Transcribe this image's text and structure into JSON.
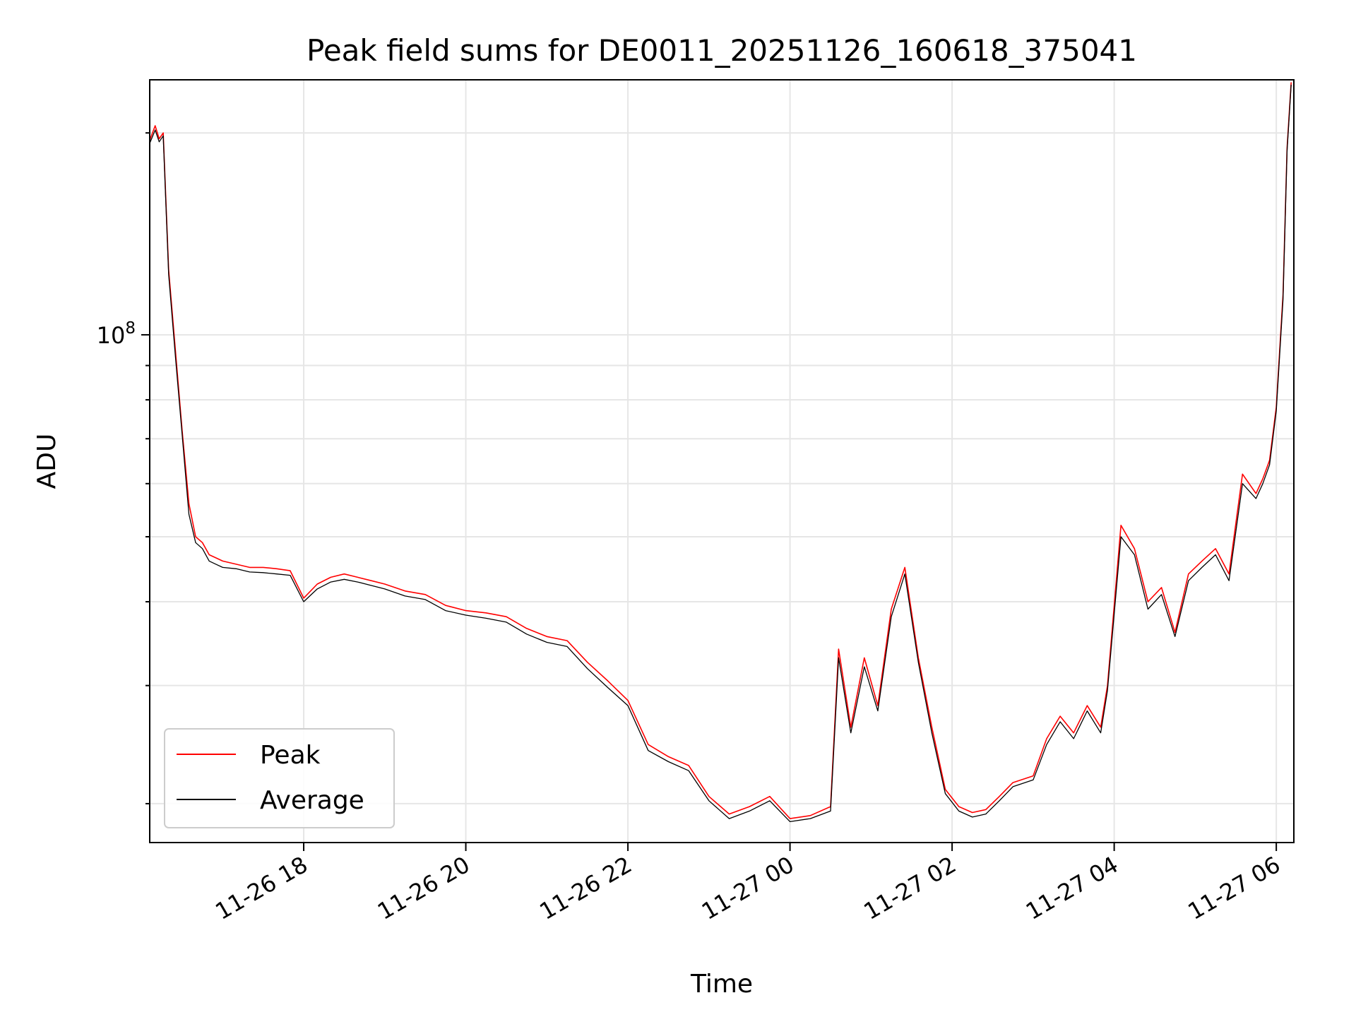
{
  "chart_data": {
    "type": "line",
    "title": "Peak field sums for DE0011_20251126_160618_375041",
    "xlabel": "Time",
    "ylabel": "ADU",
    "y_scale": "log",
    "ylim": [
      17500000,
      240000000
    ],
    "xlim": [
      "2025-11-26T16:06",
      "2025-11-27T06:13"
    ],
    "grid": true,
    "legend_position": "lower-left",
    "x_tick_labels": [
      {
        "t": "2025-11-26T18:00",
        "label": "11-26 18"
      },
      {
        "t": "2025-11-26T20:00",
        "label": "11-26 20"
      },
      {
        "t": "2025-11-26T22:00",
        "label": "11-26 22"
      },
      {
        "t": "2025-11-27T00:00",
        "label": "11-27 00"
      },
      {
        "t": "2025-11-27T02:00",
        "label": "11-27 02"
      },
      {
        "t": "2025-11-27T04:00",
        "label": "11-27 04"
      },
      {
        "t": "2025-11-27T06:00",
        "label": "11-27 06"
      }
    ],
    "y_tick_labels": [
      {
        "value": 100000000,
        "base": "10",
        "exp": "8"
      }
    ],
    "y_minor_ticks": [
      20000000,
      30000000,
      40000000,
      50000000,
      60000000,
      70000000,
      80000000,
      90000000,
      200000000
    ],
    "series": [
      {
        "name": "Peak",
        "color": "#ff0000",
        "x": [
          "2025-11-26T16:06",
          "2025-11-26T16:10",
          "2025-11-26T16:13",
          "2025-11-26T16:16",
          "2025-11-26T16:20",
          "2025-11-26T16:25",
          "2025-11-26T16:30",
          "2025-11-26T16:35",
          "2025-11-26T16:40",
          "2025-11-26T16:45",
          "2025-11-26T16:50",
          "2025-11-26T16:55",
          "2025-11-26T17:00",
          "2025-11-26T17:10",
          "2025-11-26T17:20",
          "2025-11-26T17:30",
          "2025-11-26T17:40",
          "2025-11-26T17:50",
          "2025-11-26T18:00",
          "2025-11-26T18:10",
          "2025-11-26T18:20",
          "2025-11-26T18:30",
          "2025-11-26T18:40",
          "2025-11-26T18:50",
          "2025-11-26T19:00",
          "2025-11-26T19:15",
          "2025-11-26T19:30",
          "2025-11-26T19:45",
          "2025-11-26T20:00",
          "2025-11-26T20:15",
          "2025-11-26T20:30",
          "2025-11-26T20:45",
          "2025-11-26T21:00",
          "2025-11-26T21:15",
          "2025-11-26T21:30",
          "2025-11-26T21:45",
          "2025-11-26T22:00",
          "2025-11-26T22:15",
          "2025-11-26T22:30",
          "2025-11-26T22:45",
          "2025-11-26T23:00",
          "2025-11-26T23:15",
          "2025-11-26T23:30",
          "2025-11-26T23:45",
          "2025-11-27T00:00",
          "2025-11-27T00:15",
          "2025-11-27T00:30",
          "2025-11-27T00:36",
          "2025-11-27T00:45",
          "2025-11-27T00:55",
          "2025-11-27T01:05",
          "2025-11-27T01:15",
          "2025-11-27T01:25",
          "2025-11-27T01:35",
          "2025-11-27T01:45",
          "2025-11-27T01:55",
          "2025-11-27T02:05",
          "2025-11-27T02:15",
          "2025-11-27T02:25",
          "2025-11-27T02:35",
          "2025-11-27T02:45",
          "2025-11-27T03:00",
          "2025-11-27T03:10",
          "2025-11-27T03:20",
          "2025-11-27T03:30",
          "2025-11-27T03:40",
          "2025-11-27T03:50",
          "2025-11-27T03:55",
          "2025-11-27T04:05",
          "2025-11-27T04:15",
          "2025-11-27T04:25",
          "2025-11-27T04:35",
          "2025-11-27T04:45",
          "2025-11-27T04:55",
          "2025-11-27T05:05",
          "2025-11-27T05:15",
          "2025-11-27T05:25",
          "2025-11-27T05:35",
          "2025-11-27T05:45",
          "2025-11-27T05:50",
          "2025-11-27T05:55",
          "2025-11-27T06:00",
          "2025-11-27T06:05",
          "2025-11-27T06:08",
          "2025-11-27T06:11"
        ],
        "values": [
          195000000,
          205000000,
          196000000,
          200000000,
          125000000,
          95000000,
          72000000,
          56000000,
          50000000,
          49000000,
          47000000,
          46500000,
          46000000,
          45500000,
          45000000,
          45000000,
          44800000,
          44500000,
          40500000,
          42500000,
          43500000,
          44000000,
          43500000,
          43000000,
          42500000,
          41500000,
          41000000,
          39500000,
          38800000,
          38500000,
          38000000,
          36500000,
          35500000,
          35000000,
          32500000,
          30500000,
          28500000,
          24500000,
          23500000,
          22800000,
          20500000,
          19300000,
          19800000,
          20500000,
          19000000,
          19200000,
          19800000,
          34000000,
          26000000,
          33000000,
          28000000,
          39000000,
          45000000,
          33000000,
          26000000,
          21000000,
          19800000,
          19400000,
          19600000,
          20500000,
          21500000,
          22000000,
          25000000,
          27000000,
          25500000,
          28000000,
          26000000,
          30000000,
          52000000,
          48000000,
          40000000,
          42000000,
          36000000,
          44000000,
          46000000,
          48000000,
          44000000,
          62000000,
          58000000,
          61000000,
          65000000,
          78000000,
          115000000,
          190000000,
          238000000
        ]
      },
      {
        "name": "Average",
        "color": "#000000",
        "x": [
          "2025-11-26T16:06",
          "2025-11-26T16:10",
          "2025-11-26T16:13",
          "2025-11-26T16:16",
          "2025-11-26T16:20",
          "2025-11-26T16:25",
          "2025-11-26T16:30",
          "2025-11-26T16:35",
          "2025-11-26T16:40",
          "2025-11-26T16:45",
          "2025-11-26T16:50",
          "2025-11-26T16:55",
          "2025-11-26T17:00",
          "2025-11-26T17:10",
          "2025-11-26T17:20",
          "2025-11-26T17:30",
          "2025-11-26T17:40",
          "2025-11-26T17:50",
          "2025-11-26T18:00",
          "2025-11-26T18:10",
          "2025-11-26T18:20",
          "2025-11-26T18:30",
          "2025-11-26T18:40",
          "2025-11-26T18:50",
          "2025-11-26T19:00",
          "2025-11-26T19:15",
          "2025-11-26T19:30",
          "2025-11-26T19:45",
          "2025-11-26T20:00",
          "2025-11-26T20:15",
          "2025-11-26T20:30",
          "2025-11-26T20:45",
          "2025-11-26T21:00",
          "2025-11-26T21:15",
          "2025-11-26T21:30",
          "2025-11-26T21:45",
          "2025-11-26T22:00",
          "2025-11-26T22:15",
          "2025-11-26T22:30",
          "2025-11-26T22:45",
          "2025-11-26T23:00",
          "2025-11-26T23:15",
          "2025-11-26T23:30",
          "2025-11-26T23:45",
          "2025-11-27T00:00",
          "2025-11-27T00:15",
          "2025-11-27T00:30",
          "2025-11-27T00:36",
          "2025-11-27T00:45",
          "2025-11-27T00:55",
          "2025-11-27T01:05",
          "2025-11-27T01:15",
          "2025-11-27T01:25",
          "2025-11-27T01:35",
          "2025-11-27T01:45",
          "2025-11-27T01:55",
          "2025-11-27T02:05",
          "2025-11-27T02:15",
          "2025-11-27T02:25",
          "2025-11-27T02:35",
          "2025-11-27T02:45",
          "2025-11-27T03:00",
          "2025-11-27T03:10",
          "2025-11-27T03:20",
          "2025-11-27T03:30",
          "2025-11-27T03:40",
          "2025-11-27T03:50",
          "2025-11-27T03:55",
          "2025-11-27T04:05",
          "2025-11-27T04:15",
          "2025-11-27T04:25",
          "2025-11-27T04:35",
          "2025-11-27T04:45",
          "2025-11-27T04:55",
          "2025-11-27T05:05",
          "2025-11-27T05:15",
          "2025-11-27T05:25",
          "2025-11-27T05:35",
          "2025-11-27T05:45",
          "2025-11-27T05:50",
          "2025-11-27T05:55",
          "2025-11-27T06:00",
          "2025-11-27T06:05",
          "2025-11-27T06:08",
          "2025-11-27T06:11"
        ],
        "values": [
          193000000,
          202000000,
          194000000,
          198000000,
          123000000,
          93000000,
          71000000,
          54000000,
          49000000,
          48000000,
          46000000,
          45500000,
          45000000,
          44800000,
          44300000,
          44200000,
          44000000,
          43800000,
          40000000,
          41800000,
          42800000,
          43200000,
          42800000,
          42300000,
          41800000,
          40800000,
          40300000,
          38800000,
          38200000,
          37800000,
          37300000,
          35800000,
          34800000,
          34300000,
          31800000,
          29800000,
          28000000,
          24000000,
          23100000,
          22400000,
          20200000,
          19000000,
          19500000,
          20200000,
          18800000,
          19000000,
          19500000,
          33000000,
          25500000,
          32000000,
          27500000,
          38000000,
          44000000,
          32500000,
          25500000,
          20700000,
          19500000,
          19100000,
          19300000,
          20200000,
          21200000,
          21700000,
          24500000,
          26500000,
          25000000,
          27500000,
          25500000,
          29500000,
          50000000,
          47000000,
          39000000,
          41000000,
          35500000,
          43000000,
          45000000,
          47000000,
          43000000,
          60000000,
          57000000,
          60000000,
          64000000,
          77000000,
          113000000,
          188000000,
          236000000
        ]
      }
    ]
  }
}
